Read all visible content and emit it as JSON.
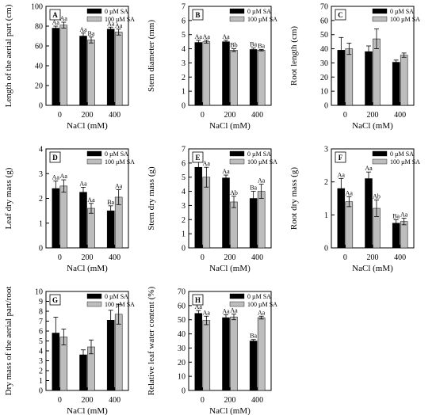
{
  "colors": {
    "sa0": "#000000",
    "sa100": "#bdbdbd"
  },
  "chart_data": [
    {
      "type": "bar",
      "panel_label": "A",
      "categories": [
        "0",
        "200",
        "400"
      ],
      "xlabel": "NaCl (mM)",
      "ylabel": "Length of the aerial part (cm)",
      "ylim": [
        0,
        100
      ],
      "yticks": [
        0,
        20,
        40,
        60,
        80,
        100
      ],
      "legend_position": "top",
      "series": [
        {
          "name": "0 µM SA",
          "values": [
            78,
            70,
            77
          ],
          "errors": [
            2,
            3,
            2
          ],
          "labels": [
            "Aa",
            "Aa",
            "Aa"
          ]
        },
        {
          "name": "100 µM SA",
          "values": [
            81,
            66,
            74
          ],
          "errors": [
            3,
            3,
            3
          ],
          "labels": [
            "Aa",
            "Ba",
            "Aa"
          ]
        }
      ]
    },
    {
      "type": "bar",
      "panel_label": "B",
      "categories": [
        "0",
        "200",
        "400"
      ],
      "xlabel": "NaCl (mM)",
      "ylabel": "Stem diameter  (mm)",
      "ylim": [
        0,
        7
      ],
      "yticks": [
        0,
        1,
        2,
        3,
        4,
        5,
        6,
        7
      ],
      "legend_position": "top",
      "series": [
        {
          "name": "0 µM SA",
          "values": [
            4.45,
            4.5,
            3.95
          ],
          "errors": [
            0.15,
            0.1,
            0.1
          ],
          "labels": [
            "Aa",
            "Aa",
            "Ba"
          ]
        },
        {
          "name": "100 µM SA",
          "values": [
            4.5,
            3.9,
            3.9
          ],
          "errors": [
            0.1,
            0.1,
            0.05
          ],
          "labels": [
            "Aa",
            "Bb",
            "Ba"
          ]
        }
      ]
    },
    {
      "type": "bar",
      "panel_label": "C",
      "categories": [
        "0",
        "200",
        "400"
      ],
      "xlabel": "NaCl (mM)",
      "ylabel": "Root length (cm)",
      "ylim": [
        0,
        70
      ],
      "yticks": [
        0,
        10,
        20,
        30,
        40,
        50,
        60,
        70
      ],
      "legend_position": "top",
      "series": [
        {
          "name": "0 µM SA",
          "values": [
            39,
            38,
            30.5
          ],
          "errors": [
            9,
            4,
            1.5
          ],
          "labels": []
        },
        {
          "name": "100 µM SA",
          "values": [
            40,
            47,
            35.5
          ],
          "errors": [
            4,
            7,
            1.5
          ],
          "labels": []
        }
      ]
    },
    {
      "type": "bar",
      "panel_label": "D",
      "categories": [
        "0",
        "200",
        "400"
      ],
      "xlabel": "NaCl (mM)",
      "ylabel": "Leaf dry mass  (g)",
      "ylim": [
        0,
        4
      ],
      "yticks": [
        0,
        1,
        2,
        3,
        4
      ],
      "legend_position": "top",
      "series": [
        {
          "name": "0 µM SA",
          "values": [
            2.4,
            2.25,
            1.5
          ],
          "errors": [
            0.3,
            0.2,
            0.2
          ],
          "labels": [
            "Aa",
            "Aa",
            "Ba"
          ]
        },
        {
          "name": "100 µM SA",
          "values": [
            2.5,
            1.6,
            2.05
          ],
          "errors": [
            0.25,
            0.2,
            0.3
          ],
          "labels": [
            "Aa",
            "Aa",
            "Aa"
          ]
        }
      ]
    },
    {
      "type": "bar",
      "panel_label": "E",
      "categories": [
        "0",
        "200",
        "400"
      ],
      "xlabel": "NaCl (mM)",
      "ylabel": "Stem dry mass (g)",
      "ylim": [
        0,
        7
      ],
      "yticks": [
        0,
        1,
        2,
        3,
        4,
        5,
        6,
        7
      ],
      "legend_position": "top",
      "series": [
        {
          "name": "0 µM SA",
          "values": [
            5.7,
            4.95,
            3.5
          ],
          "errors": [
            0.6,
            0.2,
            0.5
          ],
          "labels": [
            "Aa",
            "Aa",
            "Ba"
          ]
        },
        {
          "name": "100 µM SA",
          "values": [
            5.0,
            3.25,
            4.0
          ],
          "errors": [
            0.7,
            0.4,
            0.5
          ],
          "labels": [
            "Aa",
            "Ab",
            "Aa"
          ]
        }
      ]
    },
    {
      "type": "bar",
      "panel_label": "F",
      "categories": [
        "0",
        "200",
        "400"
      ],
      "xlabel": "NaCl (mM)",
      "ylabel": "Root dry mass (g)",
      "ylim": [
        0,
        3
      ],
      "yticks": [
        0,
        1,
        2,
        3
      ],
      "legend_position": "top",
      "series": [
        {
          "name": "0 µM SA",
          "values": [
            1.8,
            2.1,
            0.75
          ],
          "errors": [
            0.3,
            0.2,
            0.1
          ],
          "labels": [
            "Aa",
            "Aa",
            "Ba"
          ]
        },
        {
          "name": "100 µM SA",
          "values": [
            1.4,
            1.2,
            0.8
          ],
          "errors": [
            0.15,
            0.25,
            0.1
          ],
          "labels": [
            "Aa",
            "Ab",
            "Aa"
          ]
        }
      ]
    },
    {
      "type": "bar",
      "panel_label": "G",
      "categories": [
        "0",
        "200",
        "400"
      ],
      "xlabel": "NaCl (mM)",
      "ylabel": "Dry mass of the aerial part/root",
      "ylim": [
        0,
        10
      ],
      "yticks": [
        0,
        1,
        2,
        3,
        4,
        5,
        6,
        7,
        8,
        9,
        10
      ],
      "legend_position": "top",
      "series": [
        {
          "name": "0 µM SA",
          "values": [
            5.8,
            3.6,
            7.1
          ],
          "errors": [
            1.6,
            0.5,
            1.0
          ],
          "labels": []
        },
        {
          "name": "100 µM SA",
          "values": [
            5.4,
            4.4,
            7.7
          ],
          "errors": [
            0.8,
            0.7,
            1.0
          ],
          "labels": []
        }
      ]
    },
    {
      "type": "bar",
      "panel_label": "H",
      "categories": [
        "0",
        "200",
        "400"
      ],
      "xlabel": "NaCl (mM)",
      "ylabel": "Relative leaf water content (%)",
      "ylim": [
        0,
        70
      ],
      "yticks": [
        0,
        10,
        20,
        30,
        40,
        50,
        60,
        70
      ],
      "legend_position": "top",
      "series": [
        {
          "name": "0 µM SA",
          "values": [
            54.5,
            51.5,
            35
          ],
          "errors": [
            2,
            2,
            1
          ],
          "labels": [
            "Aa",
            "Aa",
            "Ba"
          ]
        },
        {
          "name": "100 µM SA",
          "values": [
            49.5,
            52,
            51.5
          ],
          "errors": [
            3,
            2,
            1
          ],
          "labels": [
            "Aa",
            "Aa",
            "Aa"
          ]
        }
      ]
    }
  ]
}
